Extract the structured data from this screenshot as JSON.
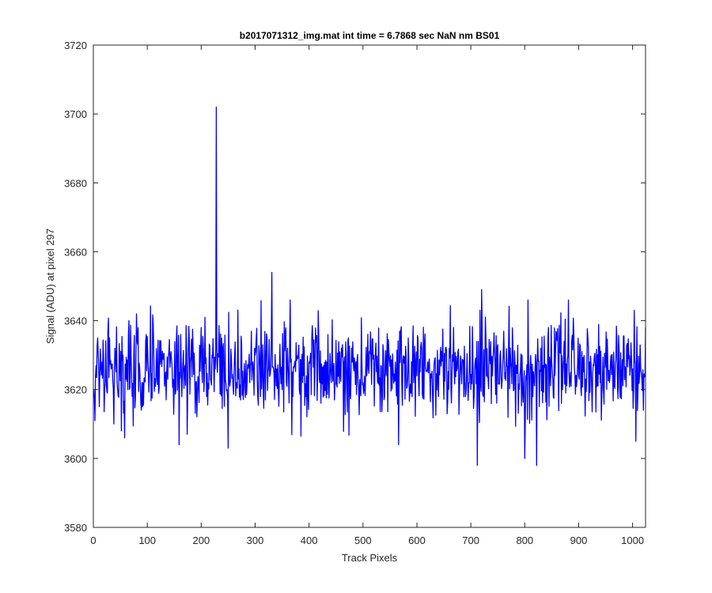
{
  "chart_data": {
    "type": "line",
    "title": "b2017071312_img.mat int time = 6.7868 sec  NaN nm BS01",
    "xlabel": "Track Pixels",
    "ylabel": "Signal (ADU) at pixel 297",
    "xlim": [
      0,
      1024
    ],
    "ylim": [
      3580,
      3720
    ],
    "xticks": [
      0,
      100,
      200,
      300,
      400,
      500,
      600,
      700,
      800,
      900,
      1000
    ],
    "yticks": [
      3580,
      3600,
      3620,
      3640,
      3660,
      3680,
      3700,
      3720
    ],
    "grid": false,
    "line_color": "#0000ff",
    "n_points": 1024,
    "baseline_mean": 3626,
    "noise_sd": 7,
    "series": [
      {
        "x": [
          1,
          3,
          8,
          12,
          16,
          22,
          27,
          33,
          38,
          40,
          45,
          52,
          55,
          60,
          66,
          72,
          80,
          86,
          92,
          98,
          105,
          112,
          118,
          126,
          135,
          144,
          150,
          157,
          159,
          162,
          170,
          175,
          180,
          190,
          200,
          210,
          220,
          226,
          228,
          230,
          240,
          248,
          250,
          262,
          270,
          290,
          300,
          310,
          320,
          330,
          331,
          340,
          350,
          360,
          370,
          380,
          390,
          400,
          420,
          440,
          460,
          470,
          480,
          500,
          505,
          520,
          540,
          560,
          566,
          580,
          600,
          620,
          640,
          660,
          680,
          700,
          708,
          712,
          720,
          740,
          760,
          780,
          795,
          800,
          810,
          822,
          830,
          850,
          870,
          880,
          900,
          920,
          940,
          960,
          980,
          1000,
          1003,
          1006,
          1010,
          1015,
          1020,
          1024
        ],
        "y": [
          3620,
          3611,
          3635,
          3625,
          3628,
          3622,
          3637,
          3626,
          3610,
          3632,
          3620,
          3608,
          3630,
          3623,
          3640,
          3618,
          3642,
          3626,
          3622,
          3636,
          3627,
          3632,
          3624,
          3629,
          3617,
          3631,
          3622,
          3625,
          3604,
          3636,
          3627,
          3620,
          3628,
          3622,
          3638,
          3618,
          3630,
          3626,
          3702,
          3625,
          3632,
          3620,
          3603,
          3630,
          3626,
          3622,
          3630,
          3618,
          3628,
          3635,
          3654,
          3626,
          3620,
          3632,
          3618,
          3630,
          3624,
          3628,
          3622,
          3626,
          3632,
          3620,
          3628,
          3622,
          3626,
          3630,
          3618,
          3628,
          3604,
          3630,
          3624,
          3628,
          3618,
          3632,
          3626,
          3620,
          3628,
          3598,
          3649,
          3624,
          3630,
          3620,
          3630,
          3600,
          3626,
          3598,
          3632,
          3628,
          3620,
          3630,
          3624,
          3628,
          3622,
          3630,
          3624,
          3626,
          3643,
          3605,
          3620,
          3626,
          3614,
          3638
        ]
      }
    ]
  }
}
